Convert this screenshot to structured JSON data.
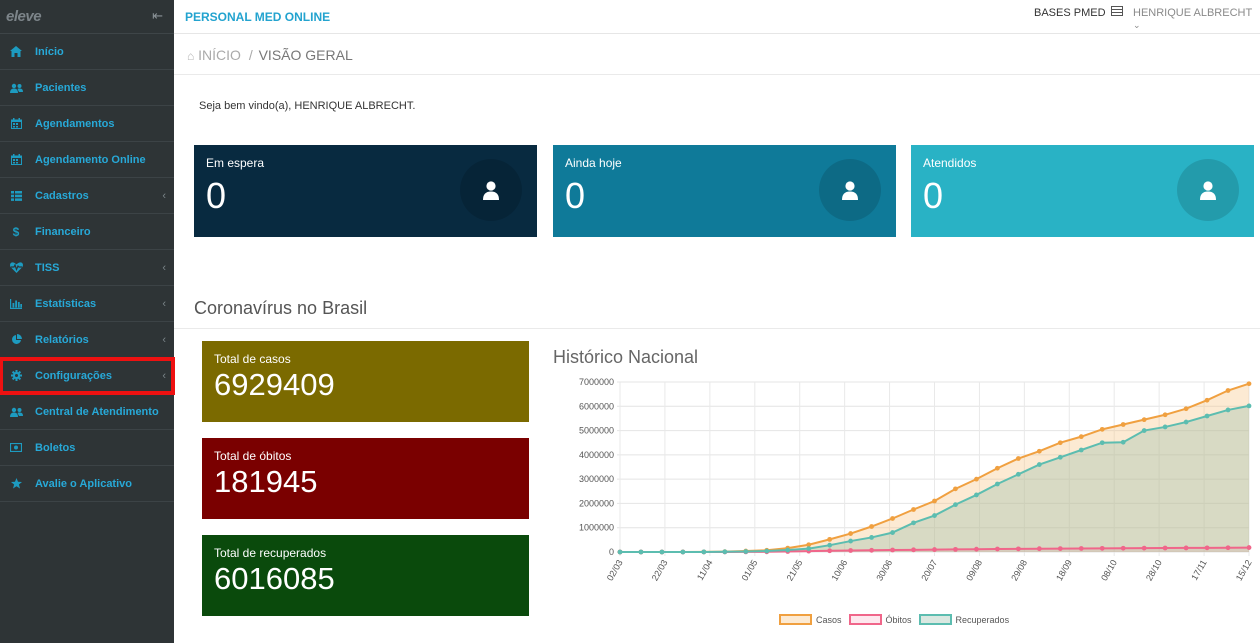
{
  "sidebar": {
    "logo": "eleve",
    "collapse_icon": "arrow-left-bars-icon",
    "items": [
      {
        "label": "Início",
        "icon": "home-icon",
        "caret": false
      },
      {
        "label": "Pacientes",
        "icon": "users-icon",
        "caret": false
      },
      {
        "label": "Agendamentos",
        "icon": "calendar-icon",
        "caret": false
      },
      {
        "label": "Agendamento Online",
        "icon": "calendar-icon",
        "caret": false
      },
      {
        "label": "Cadastros",
        "icon": "list-icon",
        "caret": true
      },
      {
        "label": "Financeiro",
        "icon": "dollar-icon",
        "caret": false
      },
      {
        "label": "TISS",
        "icon": "heartbeat-icon",
        "caret": true
      },
      {
        "label": "Estatísticas",
        "icon": "bar-chart-icon",
        "caret": true
      },
      {
        "label": "Relatórios",
        "icon": "pie-chart-icon",
        "caret": true
      },
      {
        "label": "Configurações",
        "icon": "gear-icon",
        "caret": true,
        "highlighted": true
      },
      {
        "label": "Central de Atendimento",
        "icon": "users-icon",
        "caret": false
      },
      {
        "label": "Boletos",
        "icon": "money-icon",
        "caret": false
      },
      {
        "label": "Avalie o Aplicativo",
        "icon": "star-icon",
        "caret": false
      }
    ]
  },
  "topbar": {
    "title": "PERSONAL MED ONLINE",
    "bases": "BASES PMED",
    "user": "HENRIQUE ALBRECHT"
  },
  "breadcrumb": {
    "home": "INÍCIO",
    "separator": "/",
    "current": "VISÃO GERAL"
  },
  "welcome": "Seja bem vindo(a), HENRIQUE ALBRECHT.",
  "stats": [
    {
      "label": "Em espera",
      "value": "0",
      "color": "#082a40"
    },
    {
      "label": "Ainda hoje",
      "value": "0",
      "color": "#0f7a99"
    },
    {
      "label": "Atendidos",
      "value": "0",
      "color": "#29b2c5"
    }
  ],
  "corona": {
    "title": "Coronavírus no Brasil",
    "boxes": [
      {
        "label": "Total de casos",
        "value": "6929409",
        "color": "#7b6a00"
      },
      {
        "label": "Total de óbitos",
        "value": "181945",
        "color": "#7a0000"
      },
      {
        "label": "Total de recuperados",
        "value": "6016085",
        "color": "#0a4a0c"
      }
    ],
    "chart_title": "Histórico Nacional"
  },
  "chart_data": {
    "type": "line",
    "title": "Histórico Nacional",
    "y_ticks": [
      "7000000",
      "6000000",
      "5000000",
      "4000000",
      "3000000",
      "2000000",
      "1000000",
      "0"
    ],
    "ylim": [
      0,
      7000000
    ],
    "x_labels": [
      "02/03",
      "22/03",
      "11/04",
      "01/05",
      "21/05",
      "10/06",
      "30/06",
      "20/07",
      "09/08",
      "29/08",
      "18/09",
      "08/10",
      "28/10",
      "17/11",
      "15/12"
    ],
    "series": [
      {
        "name": "Casos",
        "color": "#f0a040",
        "fill": "rgba(246,196,130,0.35)",
        "values": [
          0,
          0,
          0,
          2000,
          5000,
          15000,
          40000,
          70000,
          160000,
          300000,
          520000,
          760000,
          1050000,
          1380000,
          1750000,
          2100000,
          2600000,
          3000000,
          3450000,
          3850000,
          4150000,
          4500000,
          4750000,
          5050000,
          5250000,
          5450000,
          5650000,
          5900000,
          6250000,
          6650000,
          6929409
        ]
      },
      {
        "name": "Óbitos",
        "color": "#f0668a",
        "fill": "rgba(240,102,138,0.15)",
        "values": [
          0,
          0,
          0,
          0,
          500,
          1500,
          5000,
          8000,
          20000,
          35000,
          50000,
          62000,
          70000,
          82000,
          90000,
          100000,
          108000,
          115000,
          125000,
          130000,
          136000,
          140000,
          145000,
          150000,
          155000,
          160000,
          165000,
          168000,
          171000,
          176000,
          181945
        ]
      },
      {
        "name": "Recuperados",
        "color": "#5cbdb0",
        "fill": "rgba(150,190,170,0.35)",
        "values": [
          0,
          0,
          0,
          0,
          2000,
          8000,
          20000,
          40000,
          80000,
          140000,
          280000,
          450000,
          600000,
          800000,
          1200000,
          1500000,
          1950000,
          2350000,
          2800000,
          3200000,
          3600000,
          3900000,
          4200000,
          4500000,
          4520000,
          5000000,
          5150000,
          5350000,
          5600000,
          5850000,
          6016085
        ]
      }
    ],
    "legend_position": "bottom"
  }
}
